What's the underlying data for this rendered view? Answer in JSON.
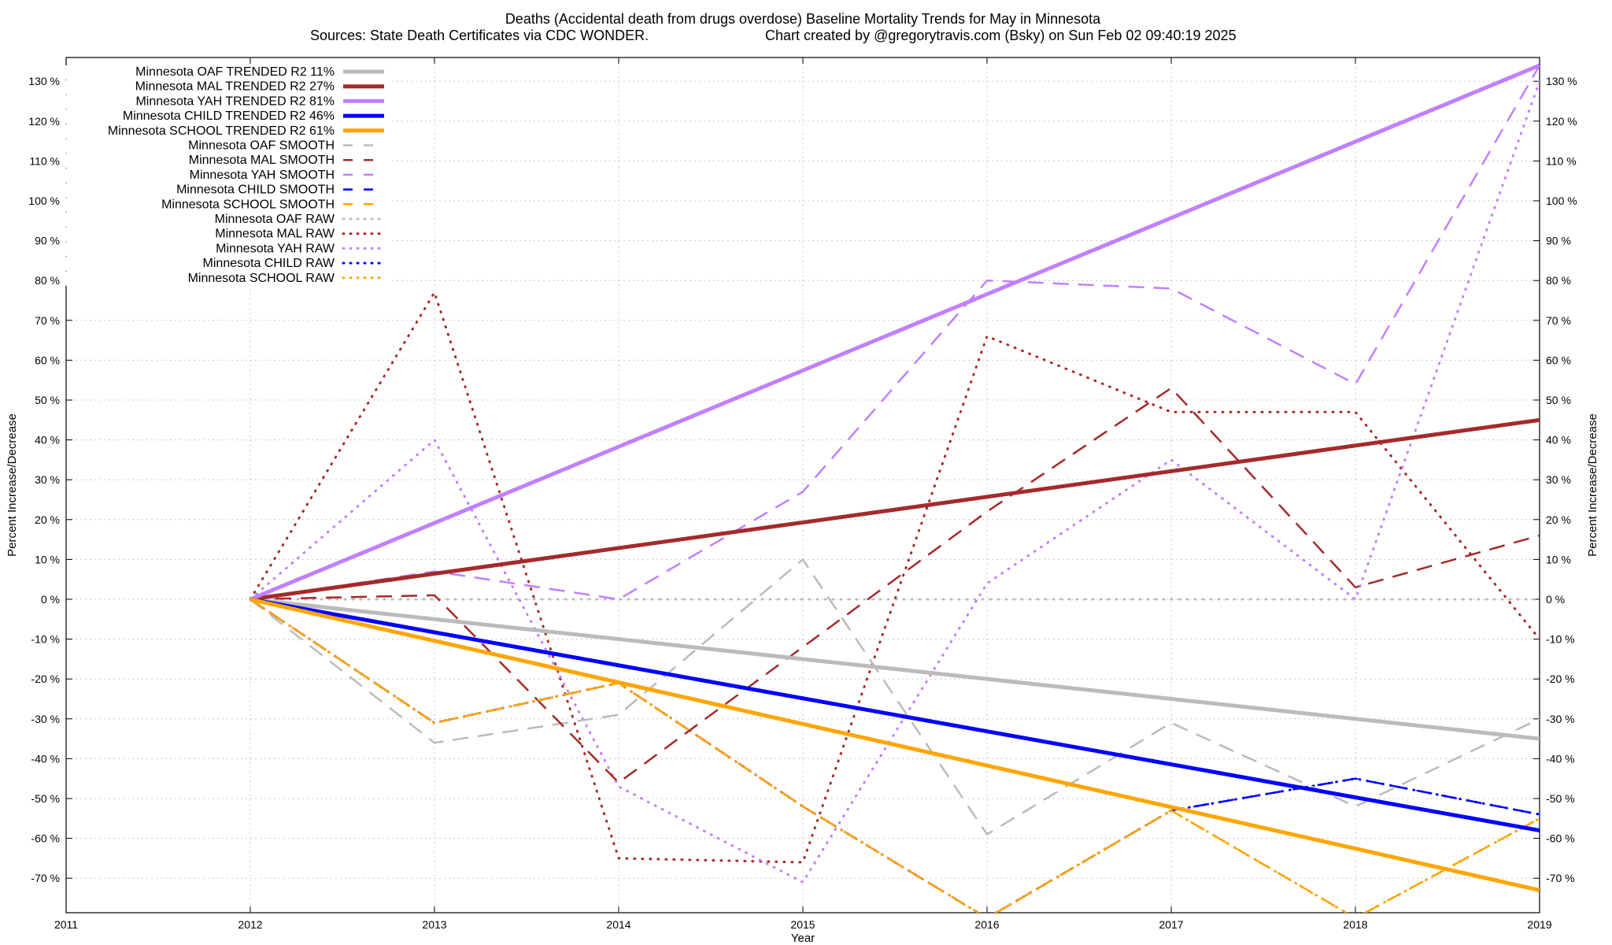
{
  "chart_data": {
    "type": "line",
    "title_line1": "Deaths (Accidental death from drugs overdose)  Baseline Mortality Trends for May in Minnesota",
    "title_line2_left": "Sources: State Death Certificates via CDC WONDER.",
    "title_line2_right": "Chart created by @gregorytravis.com (Bsky) on Sun Feb 02 09:40:19 2025",
    "xlabel": "Year",
    "ylabel_left": "Percent Increase/Decrease",
    "ylabel_right": "Percent Increase/Decrease",
    "xlim": [
      2011,
      2019
    ],
    "ylim": [
      -80,
      135
    ],
    "x_ticks": [
      "2011",
      "2012",
      "2013",
      "2014",
      "2015",
      "2016",
      "2017",
      "2018",
      "2019"
    ],
    "y_ticks": [
      "130 %",
      "120 %",
      "110 %",
      "100 %",
      "90 %",
      "80 %",
      "70 %",
      "60 %",
      "50 %",
      "40 %",
      "30 %",
      "20 %",
      "10 %",
      "0 %",
      "-10 %",
      "-20 %",
      "-30 %",
      "-40 %",
      "-50 %",
      "-60 %",
      "-70 %"
    ],
    "grid": true,
    "legend_position": "top-left",
    "x": [
      2012,
      2013,
      2014,
      2015,
      2016,
      2017,
      2018,
      2019
    ],
    "series": [
      {
        "name": "Minnesota OAF TRENDED R2  11%",
        "style": "solid",
        "color": "#bbbbbb",
        "x": [
          2012,
          2019
        ],
        "values": [
          0,
          -35
        ]
      },
      {
        "name": "Minnesota MAL TRENDED R2  27%",
        "style": "solid",
        "color": "#a52a2a",
        "x": [
          2012,
          2019
        ],
        "values": [
          0,
          45
        ]
      },
      {
        "name": "Minnesota YAH TRENDED R2  81%",
        "style": "solid",
        "color": "#c080ff",
        "x": [
          2012,
          2019
        ],
        "values": [
          0,
          134
        ]
      },
      {
        "name": "Minnesota CHILD TRENDED R2  46%",
        "style": "solid",
        "color": "#0000ff",
        "x": [
          2012,
          2019
        ],
        "values": [
          0,
          -58
        ]
      },
      {
        "name": "Minnesota SCHOOL TRENDED R2  61%",
        "style": "solid",
        "color": "#ffa500",
        "x": [
          2012,
          2019
        ],
        "values": [
          0,
          -73
        ]
      },
      {
        "name": "Minnesota OAF SMOOTH",
        "style": "dashed",
        "color": "#bbbbbb",
        "values": [
          0,
          -36,
          -29,
          10,
          -59,
          -31,
          -52,
          -30
        ]
      },
      {
        "name": "Minnesota MAL SMOOTH",
        "style": "dashed",
        "color": "#a52a2a",
        "values": [
          0,
          1,
          -46,
          -12,
          22,
          53,
          3,
          16
        ]
      },
      {
        "name": "Minnesota YAH SMOOTH",
        "style": "dashed",
        "color": "#c080ff",
        "values": [
          0,
          7,
          0,
          27,
          80,
          78,
          54,
          134
        ]
      },
      {
        "name": "Minnesota CHILD SMOOTH",
        "style": "dashed",
        "color": "#0000ff",
        "values": [
          0,
          -31,
          -21,
          -52,
          -80,
          -53,
          -45,
          -54
        ]
      },
      {
        "name": "Minnesota SCHOOL SMOOTH",
        "style": "dashed",
        "color": "#ffa500",
        "values": [
          0,
          -31,
          -21,
          -52,
          -80,
          -53,
          -80,
          -55
        ]
      },
      {
        "name": "Minnesota OAF RAW",
        "style": "dotted",
        "color": "#bbbbbb",
        "values": [
          0,
          0,
          0,
          0,
          0,
          0,
          0,
          0
        ]
      },
      {
        "name": "Minnesota MAL RAW",
        "style": "dotted",
        "color": "#a52a2a",
        "values": [
          0,
          77,
          -65,
          -66,
          66,
          47,
          47,
          -10
        ]
      },
      {
        "name": "Minnesota YAH RAW",
        "style": "dotted",
        "color": "#c080ff",
        "values": [
          0,
          40,
          -47,
          -71,
          4,
          35,
          0,
          130
        ]
      },
      {
        "name": "Minnesota CHILD RAW",
        "style": "dotted",
        "color": "#0000ff",
        "values": [
          0,
          -31,
          -21,
          -52,
          -80,
          -53,
          -45,
          -54
        ]
      },
      {
        "name": "Minnesota SCHOOL RAW",
        "style": "dotted",
        "color": "#ffa500",
        "values": [
          0,
          -31,
          -21,
          -52,
          -80,
          -53,
          -80,
          -55
        ]
      }
    ]
  }
}
